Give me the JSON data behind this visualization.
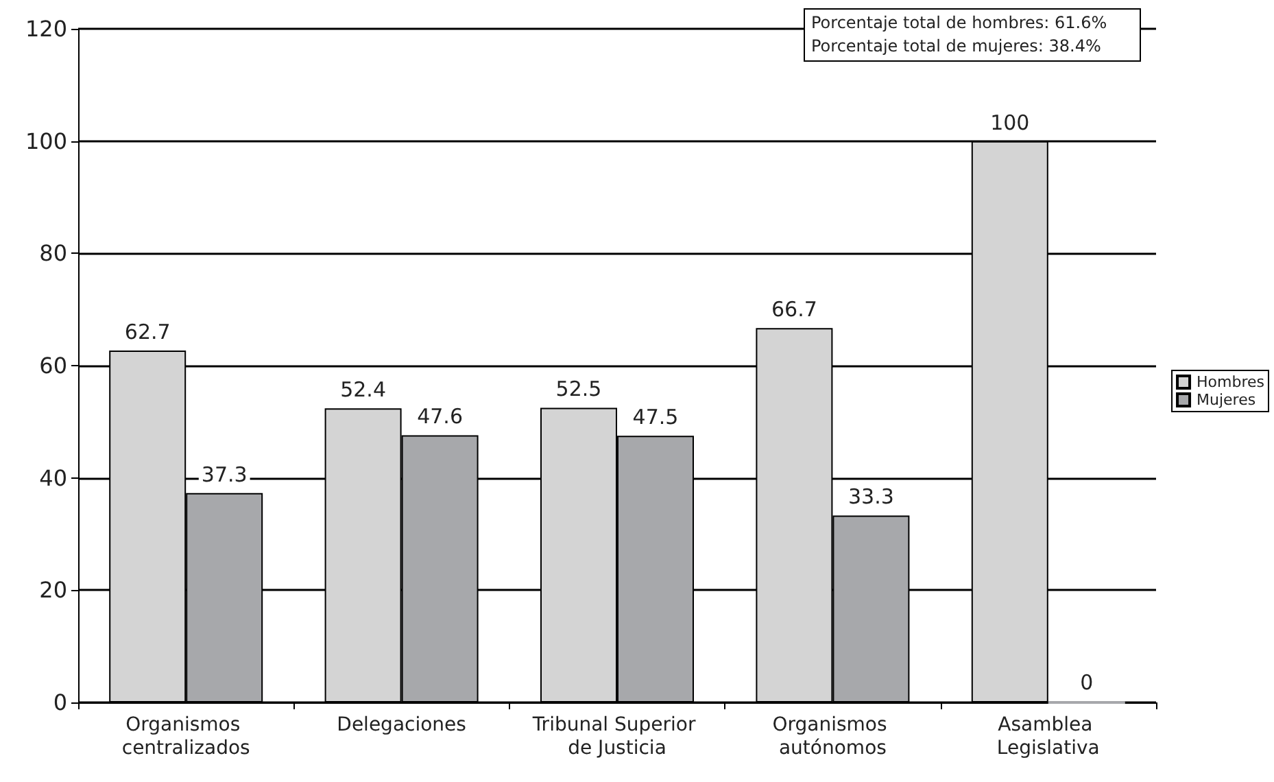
{
  "chart_data": {
    "type": "bar",
    "categories": [
      "Organismos centralizados",
      "Delegaciones",
      "Tribunal Superior de Justicia",
      "Organismos autónomos",
      "Asamblea Legislativa"
    ],
    "series": [
      {
        "name": "Hombres",
        "color": "#d4d4d4",
        "values": [
          62.7,
          52.4,
          52.5,
          66.7,
          100
        ]
      },
      {
        "name": "Mujeres",
        "color": "#a7a8ab",
        "values": [
          37.3,
          47.6,
          47.5,
          33.3,
          0
        ]
      }
    ],
    "ylim": [
      0,
      120
    ],
    "yticks": [
      0,
      20,
      40,
      60,
      80,
      100,
      120
    ],
    "grid": "y",
    "legend": "right",
    "data_labels": true,
    "annotations": [
      "Porcentaje total de hombres: 61.6%",
      "Porcentaje total de mujeres: 38.4%"
    ]
  }
}
